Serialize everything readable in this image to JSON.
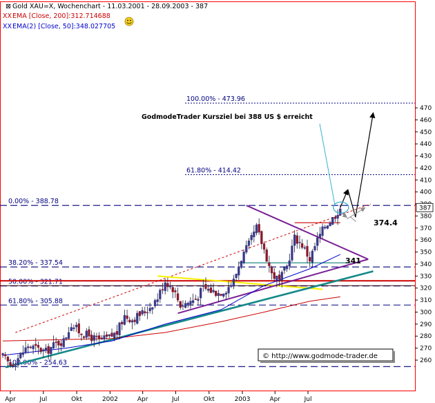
{
  "chart_data": {
    "type": "candlestick",
    "header": {
      "title": "Gold XAU=X, Wochenchart - 11.03.2001 - 28.09.2003 - 387",
      "ema200": "EMA [Close, 200]:312.714688",
      "ema50": "EMA(2) [Close, 50]:348.027705",
      "prefix": "XX"
    },
    "y_axis": {
      "ylim": [
        250,
        483
      ],
      "ticks": [
        260,
        270,
        280,
        290,
        300,
        310,
        320,
        330,
        340,
        350,
        360,
        370,
        380,
        387,
        390,
        400,
        410,
        420,
        430,
        440,
        450,
        460,
        470
      ],
      "last_price": "387"
    },
    "x_axis": {
      "ticks": [
        "Apr",
        "Jul",
        "Okt",
        "2002",
        "Apr",
        "Jul",
        "Okt",
        "2003",
        "Apr",
        "Jul"
      ],
      "start_date": "2001-03-11",
      "end_date": "2003-09-28"
    },
    "fib_levels": [
      {
        "label": "100.00% - 473.96",
        "value": 473.96
      },
      {
        "label": "61.80% - 414.42",
        "value": 414.42
      },
      {
        "label": "0.00% - 388.78",
        "value": 388.78
      },
      {
        "label": "38.20% - 337.54",
        "value": 337.54
      },
      {
        "label": "50.00% - 321.71",
        "value": 321.71
      },
      {
        "label": "61.80% - 305.88",
        "value": 305.88
      },
      {
        "label": "100.00% - 254.63",
        "value": 254.63
      }
    ],
    "annotations": {
      "target_text": "GodmodeTrader Kursziel bei 388 US $ erreicht",
      "level_374": "374.4",
      "level_341": "341",
      "copyright": "© http://www.godmode-trader.de"
    },
    "price_path": [
      [
        "2001-03-11",
        263
      ],
      [
        "2001-04-01",
        256
      ],
      [
        "2001-04-22",
        262
      ],
      [
        "2001-05-20",
        272
      ],
      [
        "2001-06-10",
        270
      ],
      [
        "2001-07-08",
        267
      ],
      [
        "2001-08-05",
        274
      ],
      [
        "2001-08-26",
        276
      ],
      [
        "2001-09-16",
        290
      ],
      [
        "2001-10-07",
        284
      ],
      [
        "2001-11-04",
        280
      ],
      [
        "2001-12-02",
        276
      ],
      [
        "2001-12-30",
        279
      ],
      [
        "2002-01-20",
        283
      ],
      [
        "2002-02-10",
        297
      ],
      [
        "2002-03-03",
        294
      ],
      [
        "2002-03-24",
        298
      ],
      [
        "2002-04-14",
        302
      ],
      [
        "2002-05-12",
        312
      ],
      [
        "2002-06-02",
        326
      ],
      [
        "2002-06-23",
        320
      ],
      [
        "2002-07-14",
        306
      ],
      [
        "2002-08-04",
        308
      ],
      [
        "2002-08-25",
        311
      ],
      [
        "2002-09-15",
        320
      ],
      [
        "2002-10-06",
        318
      ],
      [
        "2002-10-27",
        316
      ],
      [
        "2002-11-17",
        319
      ],
      [
        "2002-12-08",
        326
      ],
      [
        "2002-12-29",
        345
      ],
      [
        "2003-01-19",
        356
      ],
      [
        "2003-02-09",
        370
      ],
      [
        "2003-03-02",
        352
      ],
      [
        "2003-03-23",
        332
      ],
      [
        "2003-04-13",
        326
      ],
      [
        "2003-05-04",
        338
      ],
      [
        "2003-05-25",
        362
      ],
      [
        "2003-06-15",
        356
      ],
      [
        "2003-07-06",
        344
      ],
      [
        "2003-07-27",
        360
      ],
      [
        "2003-08-17",
        372
      ],
      [
        "2003-09-07",
        378
      ],
      [
        "2003-09-28",
        387
      ]
    ],
    "ema200_path": [
      [
        "2001-03-11",
        276
      ],
      [
        "2001-08-05",
        277
      ],
      [
        "2002-01-06",
        278
      ],
      [
        "2002-06-02",
        283
      ],
      [
        "2002-11-03",
        292
      ],
      [
        "2003-03-02",
        300
      ],
      [
        "2003-07-06",
        309
      ],
      [
        "2003-09-28",
        312.7
      ]
    ],
    "ema50_path": [
      [
        "2001-03-11",
        264
      ],
      [
        "2001-09-02",
        270
      ],
      [
        "2002-01-06",
        276
      ],
      [
        "2002-06-02",
        290
      ],
      [
        "2002-11-03",
        302
      ],
      [
        "2003-03-02",
        322
      ],
      [
        "2003-07-06",
        336
      ],
      [
        "2003-09-28",
        348
      ]
    ],
    "lines": {
      "uptrend": {
        "from": [
          "2001-03-18",
          254
        ],
        "to": [
          "2003-12-28",
          334
        ]
      },
      "triangle_top": {
        "from": [
          "2003-01-12",
          388.78
        ],
        "to": [
          "2003-12-14",
          344
        ]
      },
      "triangle_bottom": {
        "from": [
          "2002-07-07",
          299
        ],
        "to": [
          "2003-12-14",
          344
        ]
      },
      "red_dotted": {
        "from": [
          "2001-04-15",
          283
        ],
        "to": [
          "2003-12-21",
          390
        ]
      },
      "yellow": {
        "from": [
          "2002-05-12",
          330
        ],
        "to": [
          "2003-08-10",
          319
        ]
      },
      "resistance_374": {
        "from": [
          "2003-05-25",
          374.4
        ],
        "to": [
          "2003-09-28",
          374.4
        ]
      },
      "support_341": {
        "from": [
          "2002-12-22",
          341
        ],
        "to": [
          "2003-10-26",
          341
        ]
      },
      "red_horizontal": 326,
      "dark_line_322": 322
    },
    "projection": [
      [
        "2003-09-28",
        387
      ],
      [
        "2003-10-19",
        402
      ],
      [
        "2003-11-09",
        379
      ],
      [
        "2003-11-30",
        388
      ],
      [
        "2003-12-28",
        466
      ]
    ],
    "colors": {
      "up": "#3a3a8a",
      "down": "#8a1a2a",
      "fib": "#00007f",
      "ema200": "#cc0000",
      "ema50": "#0000cc",
      "uptrend": "#138a88",
      "triangle": "#7a1f95",
      "yellow": "#f7f000",
      "red_line": "#cc0000",
      "axis_border": "#ff0000"
    },
    "grid": false,
    "legend": "top-left"
  }
}
